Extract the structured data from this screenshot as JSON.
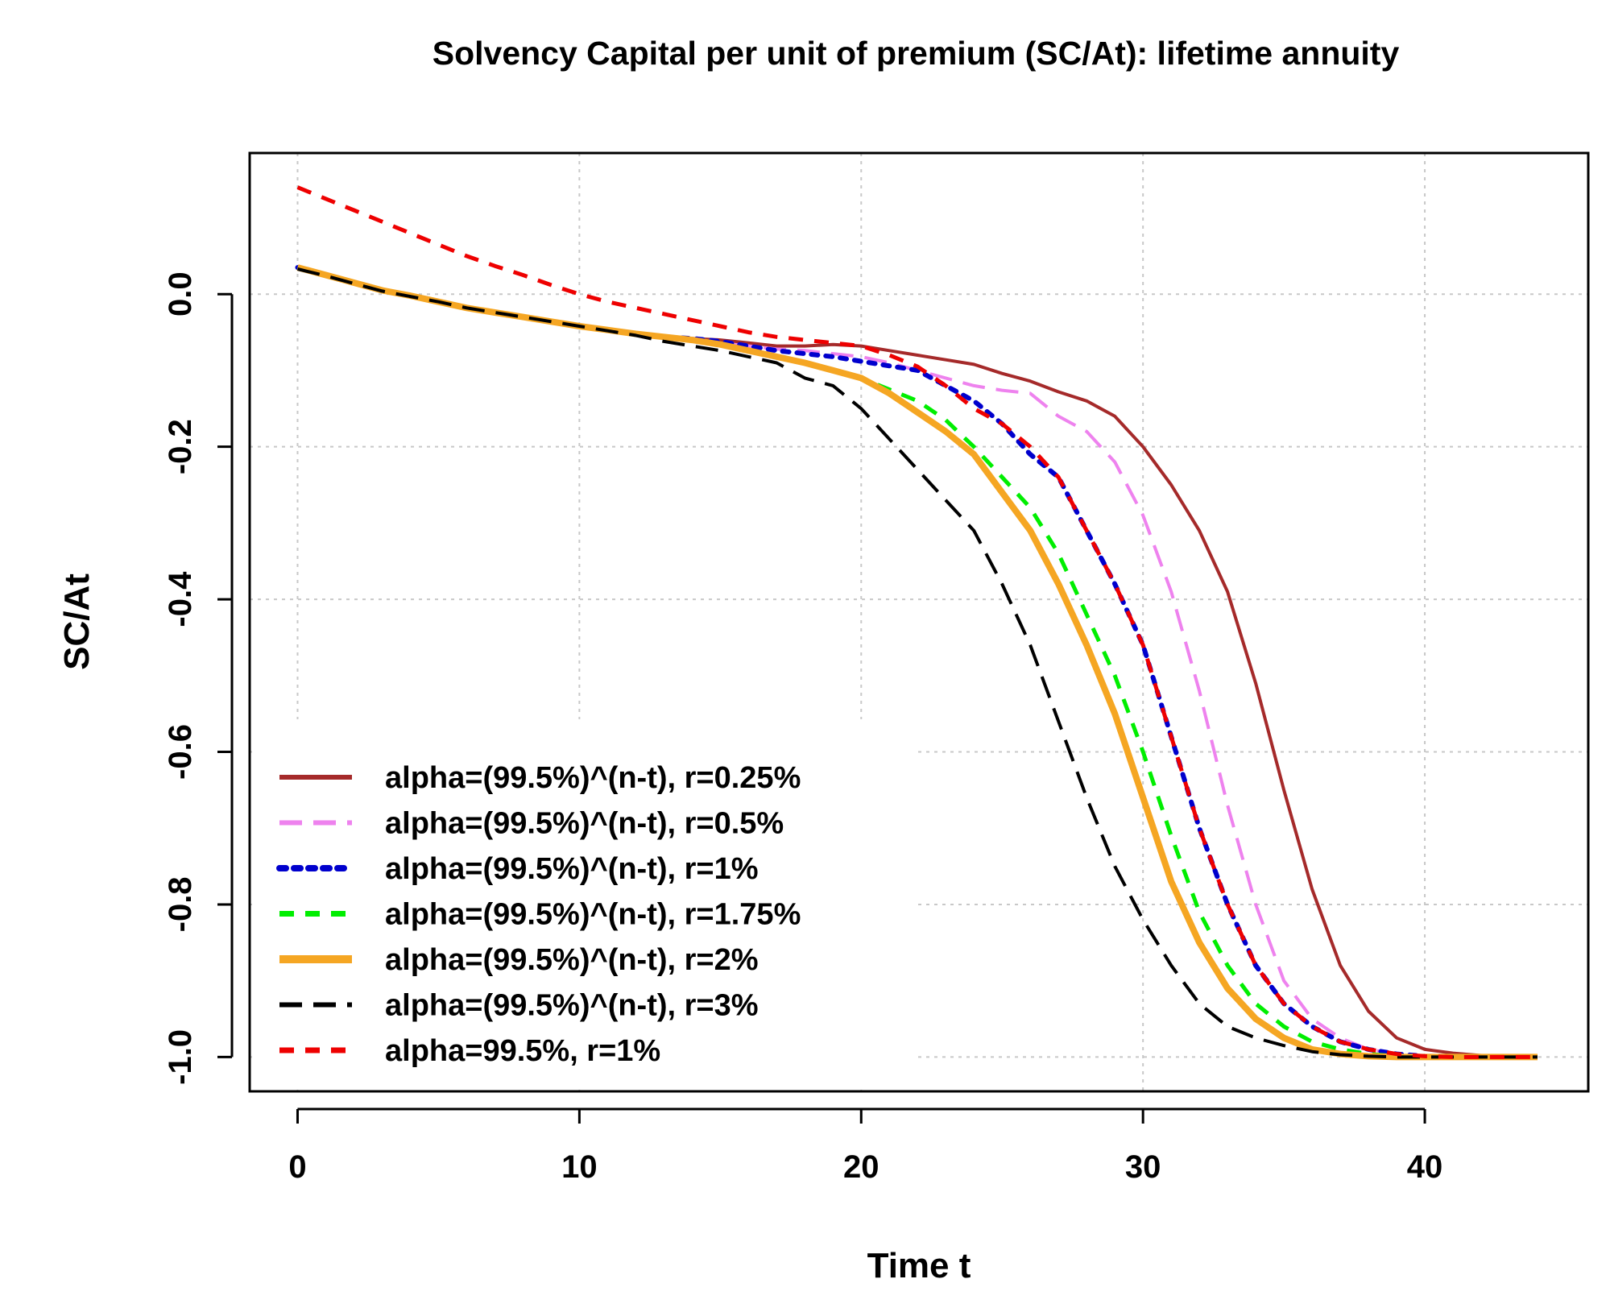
{
  "chart_data": {
    "type": "line",
    "title": "Solvency Capital per unit of premium (SC/At): lifetime annuity",
    "xlabel": "Time t",
    "ylabel": "SC/At",
    "xlim": [
      -1.7,
      45.8
    ],
    "ylim": [
      -1.045,
      0.185
    ],
    "xticks": [
      0,
      10,
      20,
      30,
      40
    ],
    "xtick_labels": [
      "0",
      "10",
      "20",
      "30",
      "40"
    ],
    "yticks": [
      0.0,
      -0.2,
      -0.4,
      -0.6,
      -0.8,
      -1.0
    ],
    "ytick_labels": [
      "0.0",
      "-0.2",
      "-0.4",
      "-0.6",
      "-0.8",
      "-1.0"
    ],
    "grid": true,
    "legend_position": "bottom-left",
    "x": [
      0,
      1,
      2,
      3,
      4,
      5,
      6,
      7,
      8,
      9,
      10,
      11,
      12,
      13,
      14,
      15,
      16,
      17,
      18,
      19,
      20,
      21,
      22,
      23,
      24,
      25,
      26,
      27,
      28,
      29,
      30,
      31,
      32,
      33,
      34,
      35,
      36,
      37,
      38,
      39,
      40,
      41,
      42,
      43,
      44
    ],
    "series": [
      {
        "name": "alpha=(99.5%)^(n-t), r=0.25%",
        "color": "#a52a2a",
        "dash": "solid",
        "values": [
          0.035,
          0.025,
          0.015,
          0.005,
          -0.002,
          -0.01,
          -0.018,
          -0.024,
          -0.03,
          -0.036,
          -0.042,
          -0.047,
          -0.052,
          -0.056,
          -0.058,
          -0.06,
          -0.064,
          -0.068,
          -0.068,
          -0.066,
          -0.068,
          -0.074,
          -0.08,
          -0.086,
          -0.092,
          -0.104,
          -0.114,
          -0.128,
          -0.14,
          -0.16,
          -0.2,
          -0.25,
          -0.31,
          -0.39,
          -0.51,
          -0.65,
          -0.78,
          -0.88,
          -0.94,
          -0.975,
          -0.99,
          -0.995,
          -0.998,
          -1.0,
          -1.0
        ]
      },
      {
        "name": "alpha=(99.5%)^(n-t), r=0.5%",
        "color": "#ee82ee",
        "dash": "long-dash",
        "values": [
          0.035,
          0.025,
          0.015,
          0.005,
          -0.002,
          -0.01,
          -0.018,
          -0.024,
          -0.03,
          -0.036,
          -0.042,
          -0.047,
          -0.052,
          -0.056,
          -0.06,
          -0.064,
          -0.068,
          -0.072,
          -0.074,
          -0.078,
          -0.082,
          -0.09,
          -0.1,
          -0.11,
          -0.12,
          -0.126,
          -0.13,
          -0.16,
          -0.18,
          -0.22,
          -0.29,
          -0.39,
          -0.52,
          -0.67,
          -0.8,
          -0.9,
          -0.95,
          -0.975,
          -0.99,
          -0.996,
          -0.999,
          -1.0,
          -1.0,
          -1.0,
          -1.0
        ]
      },
      {
        "name": "alpha=(99.5%)^(n-t), r=1%",
        "color": "#0000cd",
        "dash": "dotted",
        "values": [
          0.035,
          0.025,
          0.015,
          0.005,
          -0.002,
          -0.01,
          -0.018,
          -0.024,
          -0.03,
          -0.036,
          -0.042,
          -0.047,
          -0.052,
          -0.056,
          -0.058,
          -0.062,
          -0.068,
          -0.074,
          -0.078,
          -0.082,
          -0.088,
          -0.094,
          -0.1,
          -0.12,
          -0.14,
          -0.17,
          -0.21,
          -0.24,
          -0.31,
          -0.38,
          -0.46,
          -0.58,
          -0.7,
          -0.8,
          -0.88,
          -0.93,
          -0.96,
          -0.98,
          -0.99,
          -0.996,
          -0.999,
          -1.0,
          -1.0,
          -1.0,
          -1.0
        ]
      },
      {
        "name": "alpha=(99.5%)^(n-t), r=1.75%",
        "color": "#00ee00",
        "dash": "dash",
        "values": [
          0.035,
          0.025,
          0.015,
          0.005,
          -0.002,
          -0.01,
          -0.018,
          -0.024,
          -0.03,
          -0.036,
          -0.042,
          -0.047,
          -0.052,
          -0.056,
          -0.06,
          -0.066,
          -0.074,
          -0.082,
          -0.09,
          -0.1,
          -0.11,
          -0.125,
          -0.14,
          -0.165,
          -0.2,
          -0.24,
          -0.28,
          -0.34,
          -0.42,
          -0.5,
          -0.6,
          -0.71,
          -0.81,
          -0.88,
          -0.93,
          -0.96,
          -0.98,
          -0.99,
          -0.996,
          -0.999,
          -1.0,
          -1.0,
          -1.0,
          -1.0,
          -1.0
        ]
      },
      {
        "name": "alpha=(99.5%)^(n-t), r=2%",
        "color": "#f5a623",
        "dash": "solid",
        "values": [
          0.035,
          0.025,
          0.015,
          0.005,
          -0.002,
          -0.01,
          -0.018,
          -0.024,
          -0.03,
          -0.036,
          -0.042,
          -0.047,
          -0.052,
          -0.056,
          -0.06,
          -0.066,
          -0.074,
          -0.082,
          -0.09,
          -0.1,
          -0.11,
          -0.13,
          -0.155,
          -0.18,
          -0.21,
          -0.26,
          -0.31,
          -0.38,
          -0.46,
          -0.55,
          -0.66,
          -0.77,
          -0.85,
          -0.91,
          -0.95,
          -0.975,
          -0.99,
          -0.996,
          -0.999,
          -1.0,
          -1.0,
          -1.0,
          -1.0,
          -1.0,
          -1.0
        ]
      },
      {
        "name": "alpha=(99.5%)^(n-t), r=3%",
        "color": "#000000",
        "dash": "long-dash",
        "values": [
          0.033,
          0.024,
          0.014,
          0.004,
          -0.003,
          -0.01,
          -0.018,
          -0.024,
          -0.03,
          -0.036,
          -0.042,
          -0.048,
          -0.054,
          -0.062,
          -0.068,
          -0.074,
          -0.082,
          -0.09,
          -0.11,
          -0.12,
          -0.15,
          -0.19,
          -0.23,
          -0.27,
          -0.31,
          -0.38,
          -0.46,
          -0.56,
          -0.66,
          -0.75,
          -0.82,
          -0.88,
          -0.93,
          -0.96,
          -0.975,
          -0.985,
          -0.993,
          -0.997,
          -0.999,
          -1.0,
          -1.0,
          -1.0,
          -1.0,
          -1.0,
          -1.0
        ]
      },
      {
        "name": "alpha=99.5%, r=1%",
        "color": "#ee0000",
        "dash": "dash",
        "values": [
          0.14,
          0.125,
          0.11,
          0.095,
          0.08,
          0.065,
          0.05,
          0.037,
          0.025,
          0.012,
          0.0,
          -0.01,
          -0.018,
          -0.026,
          -0.034,
          -0.042,
          -0.05,
          -0.056,
          -0.06,
          -0.064,
          -0.068,
          -0.08,
          -0.095,
          -0.12,
          -0.15,
          -0.17,
          -0.2,
          -0.24,
          -0.31,
          -0.38,
          -0.46,
          -0.58,
          -0.7,
          -0.8,
          -0.88,
          -0.93,
          -0.96,
          -0.98,
          -0.99,
          -0.996,
          -0.999,
          -1.0,
          -1.0,
          -1.0,
          -1.0
        ]
      }
    ]
  }
}
